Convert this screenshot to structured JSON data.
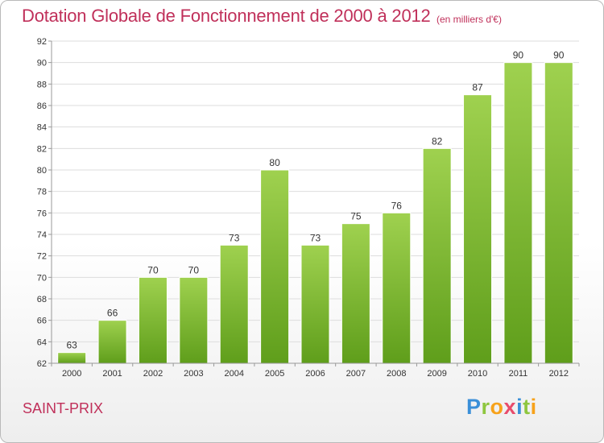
{
  "chart_data": {
    "type": "bar",
    "title": "Dotation Globale de Fonctionnement de 2000 à 2012",
    "subtitle": "(en milliers d'€)",
    "categories": [
      "2000",
      "2001",
      "2002",
      "2003",
      "2004",
      "2005",
      "2006",
      "2007",
      "2008",
      "2009",
      "2010",
      "2011",
      "2012"
    ],
    "values": [
      63,
      66,
      70,
      70,
      73,
      80,
      73,
      75,
      76,
      82,
      87,
      90,
      90
    ],
    "ylim": [
      62,
      92
    ],
    "ytick_step": 2,
    "grid": "horizontal",
    "bar_color": "#7dbb2c",
    "data_labels": true
  },
  "footer": {
    "commune": "SAINT-PRIX"
  },
  "logo": {
    "letters": [
      {
        "ch": "P",
        "color": "#3a8fd8"
      },
      {
        "ch": "r",
        "color": "#8ec63f"
      },
      {
        "ch": "o",
        "color": "#f7a21b"
      },
      {
        "ch": "x",
        "color": "#e84c6b"
      },
      {
        "ch": "i",
        "color": "#3a8fd8"
      },
      {
        "ch": "t",
        "color": "#8ec63f"
      },
      {
        "ch": "i",
        "color": "#f7a21b"
      }
    ]
  }
}
